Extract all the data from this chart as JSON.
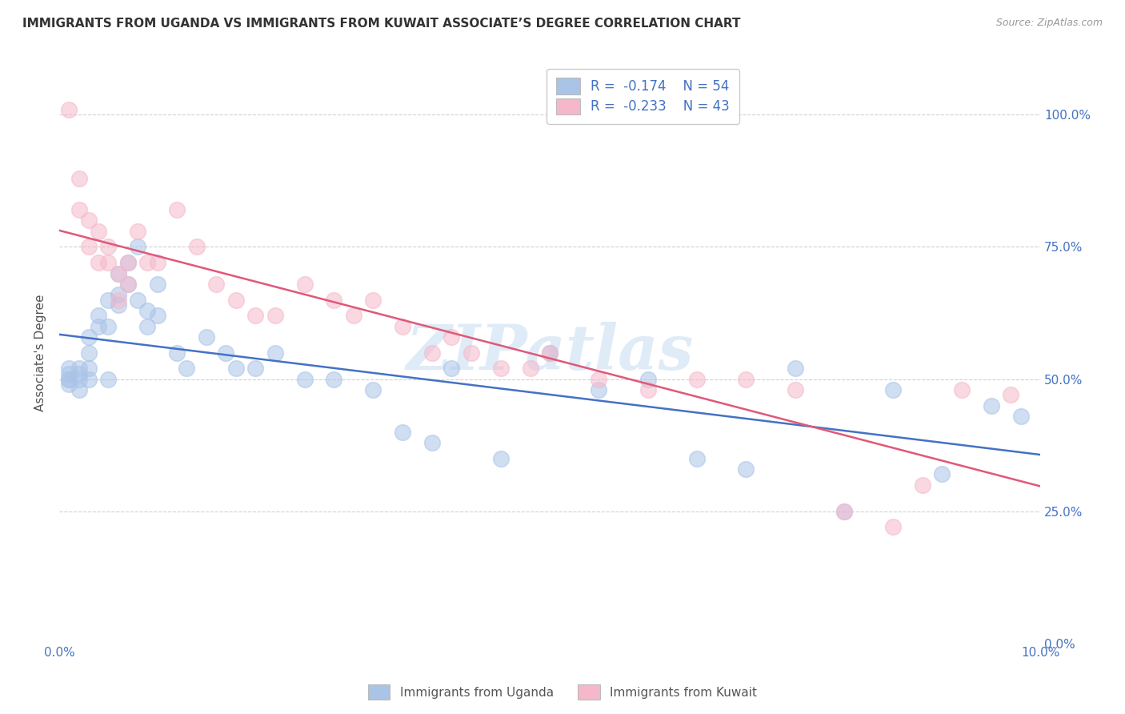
{
  "title": "IMMIGRANTS FROM UGANDA VS IMMIGRANTS FROM KUWAIT ASSOCIATE’S DEGREE CORRELATION CHART",
  "source": "Source: ZipAtlas.com",
  "ylabel": "Associate's Degree",
  "ytick_labels": [
    "0.0%",
    "25.0%",
    "50.0%",
    "75.0%",
    "100.0%"
  ],
  "ytick_values": [
    0.0,
    0.25,
    0.5,
    0.75,
    1.0
  ],
  "xlim": [
    0.0,
    0.1
  ],
  "ylim": [
    0.0,
    1.1
  ],
  "legend_R_uganda": "-0.174",
  "legend_N_uganda": "54",
  "legend_R_kuwait": "-0.233",
  "legend_N_kuwait": "43",
  "color_uganda": "#aac4e8",
  "color_kuwait": "#f5b8ca",
  "line_color_uganda": "#4472c4",
  "line_color_kuwait": "#e05878",
  "uganda_x": [
    0.001,
    0.001,
    0.001,
    0.001,
    0.001,
    0.002,
    0.002,
    0.002,
    0.002,
    0.003,
    0.003,
    0.003,
    0.003,
    0.004,
    0.004,
    0.005,
    0.005,
    0.005,
    0.006,
    0.006,
    0.006,
    0.007,
    0.007,
    0.008,
    0.008,
    0.009,
    0.009,
    0.01,
    0.01,
    0.012,
    0.013,
    0.015,
    0.017,
    0.018,
    0.02,
    0.022,
    0.025,
    0.028,
    0.032,
    0.035,
    0.038,
    0.04,
    0.045,
    0.05,
    0.055,
    0.06,
    0.065,
    0.07,
    0.075,
    0.08,
    0.085,
    0.09,
    0.095,
    0.098
  ],
  "uganda_y": [
    0.5,
    0.51,
    0.5,
    0.52,
    0.49,
    0.5,
    0.51,
    0.52,
    0.48,
    0.55,
    0.58,
    0.5,
    0.52,
    0.6,
    0.62,
    0.65,
    0.6,
    0.5,
    0.7,
    0.66,
    0.64,
    0.72,
    0.68,
    0.75,
    0.65,
    0.6,
    0.63,
    0.68,
    0.62,
    0.55,
    0.52,
    0.58,
    0.55,
    0.52,
    0.52,
    0.55,
    0.5,
    0.5,
    0.48,
    0.4,
    0.38,
    0.52,
    0.35,
    0.55,
    0.48,
    0.5,
    0.35,
    0.33,
    0.52,
    0.25,
    0.48,
    0.32,
    0.45,
    0.43
  ],
  "kuwait_x": [
    0.001,
    0.002,
    0.002,
    0.003,
    0.003,
    0.004,
    0.004,
    0.005,
    0.005,
    0.006,
    0.006,
    0.007,
    0.007,
    0.008,
    0.009,
    0.01,
    0.012,
    0.014,
    0.016,
    0.018,
    0.02,
    0.022,
    0.025,
    0.028,
    0.03,
    0.032,
    0.035,
    0.038,
    0.04,
    0.042,
    0.045,
    0.048,
    0.05,
    0.055,
    0.06,
    0.065,
    0.07,
    0.075,
    0.08,
    0.085,
    0.088,
    0.092,
    0.097
  ],
  "kuwait_y": [
    1.01,
    0.88,
    0.82,
    0.8,
    0.75,
    0.78,
    0.72,
    0.72,
    0.75,
    0.65,
    0.7,
    0.72,
    0.68,
    0.78,
    0.72,
    0.72,
    0.82,
    0.75,
    0.68,
    0.65,
    0.62,
    0.62,
    0.68,
    0.65,
    0.62,
    0.65,
    0.6,
    0.55,
    0.58,
    0.55,
    0.52,
    0.52,
    0.55,
    0.5,
    0.48,
    0.5,
    0.5,
    0.48,
    0.25,
    0.22,
    0.3,
    0.48,
    0.47
  ]
}
